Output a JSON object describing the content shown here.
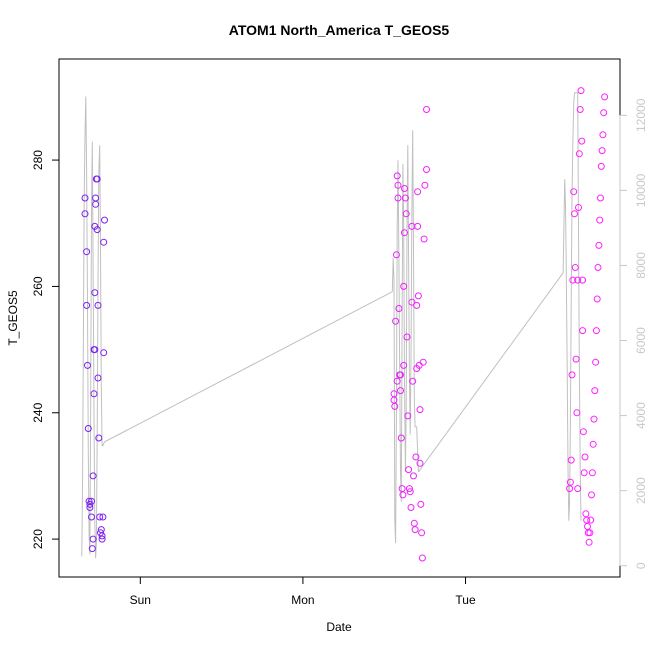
{
  "chart_data": {
    "type": "scatter",
    "title": "ATOM1 North_America T_GEOS5",
    "xlabel": "Date",
    "ylabel": "T_GEOS5",
    "x_ticks": [
      {
        "label": "Sun",
        "value": 1.0
      },
      {
        "label": "Mon",
        "value": 2.0
      },
      {
        "label": "Tue",
        "value": 3.0
      }
    ],
    "xlim": [
      0.5,
      3.95
    ],
    "ylim": [
      214,
      296
    ],
    "y_ticks": [
      220,
      240,
      260,
      280
    ],
    "y2lim": [
      -300,
      13500
    ],
    "y2_ticks": [
      0,
      2000,
      4000,
      6000,
      8000,
      10000,
      12000
    ],
    "grid": false,
    "series": [
      {
        "role": "temperature",
        "marker": "open-circle",
        "color_low": "#7a22f2",
        "color_high": "#ff22ff",
        "points": [
          [
            0.66,
            274
          ],
          [
            0.66,
            271.5
          ],
          [
            0.67,
            265.5
          ],
          [
            0.67,
            257
          ],
          [
            0.675,
            247.5
          ],
          [
            0.68,
            237.5
          ],
          [
            0.685,
            226
          ],
          [
            0.69,
            225.5
          ],
          [
            0.69,
            225
          ],
          [
            0.7,
            226
          ],
          [
            0.7,
            223.5
          ],
          [
            0.705,
            218.5
          ],
          [
            0.71,
            220
          ],
          [
            0.71,
            230
          ],
          [
            0.715,
            243
          ],
          [
            0.715,
            250
          ],
          [
            0.72,
            250
          ],
          [
            0.72,
            259
          ],
          [
            0.72,
            269.5
          ],
          [
            0.725,
            273
          ],
          [
            0.725,
            274
          ],
          [
            0.73,
            277
          ],
          [
            0.735,
            277
          ],
          [
            0.735,
            269
          ],
          [
            0.74,
            257
          ],
          [
            0.74,
            245.5
          ],
          [
            0.745,
            236
          ],
          [
            0.75,
            223.5
          ],
          [
            0.755,
            221
          ],
          [
            0.76,
            221.5
          ],
          [
            0.765,
            220.5
          ],
          [
            0.765,
            220
          ],
          [
            0.77,
            223.5
          ],
          [
            0.775,
            249.5
          ],
          [
            0.775,
            267
          ],
          [
            0.78,
            270.5
          ],
          [
            2.56,
            243
          ],
          [
            2.56,
            242
          ],
          [
            2.565,
            241
          ],
          [
            2.57,
            254.5
          ],
          [
            2.575,
            265
          ],
          [
            2.58,
            245
          ],
          [
            2.58,
            277.5
          ],
          [
            2.585,
            276
          ],
          [
            2.585,
            274
          ],
          [
            2.59,
            256.5
          ],
          [
            2.595,
            246
          ],
          [
            2.6,
            246
          ],
          [
            2.6,
            243.5
          ],
          [
            2.605,
            236
          ],
          [
            2.61,
            228
          ],
          [
            2.615,
            227
          ],
          [
            2.62,
            247.5
          ],
          [
            2.62,
            260
          ],
          [
            2.625,
            268.5
          ],
          [
            2.625,
            275.5
          ],
          [
            2.63,
            274
          ],
          [
            2.635,
            271.5
          ],
          [
            2.64,
            252
          ],
          [
            2.645,
            239.5
          ],
          [
            2.65,
            231
          ],
          [
            2.655,
            228
          ],
          [
            2.66,
            227.5
          ],
          [
            2.665,
            225
          ],
          [
            2.67,
            269.5
          ],
          [
            2.67,
            257.5
          ],
          [
            2.675,
            245
          ],
          [
            2.68,
            230
          ],
          [
            2.685,
            222.5
          ],
          [
            2.69,
            221.5
          ],
          [
            2.695,
            233
          ],
          [
            2.7,
            247
          ],
          [
            2.7,
            257
          ],
          [
            2.705,
            269.5
          ],
          [
            2.705,
            275
          ],
          [
            2.71,
            258.5
          ],
          [
            2.715,
            247.5
          ],
          [
            2.72,
            240.5
          ],
          [
            2.72,
            232
          ],
          [
            2.725,
            225.5
          ],
          [
            2.73,
            221
          ],
          [
            2.735,
            217
          ],
          [
            2.74,
            248
          ],
          [
            2.745,
            267.5
          ],
          [
            2.75,
            276
          ],
          [
            2.76,
            278.5
          ],
          [
            2.76,
            288
          ],
          [
            3.64,
            228
          ],
          [
            3.645,
            229
          ],
          [
            3.65,
            232.5
          ],
          [
            3.655,
            246
          ],
          [
            3.66,
            261
          ],
          [
            3.665,
            275
          ],
          [
            3.67,
            271.5
          ],
          [
            3.675,
            263
          ],
          [
            3.68,
            248.5
          ],
          [
            3.685,
            240
          ],
          [
            3.69,
            261
          ],
          [
            3.69,
            228
          ],
          [
            3.695,
            272.5
          ],
          [
            3.7,
            281
          ],
          [
            3.705,
            288
          ],
          [
            3.71,
            291
          ],
          [
            3.715,
            283
          ],
          [
            3.72,
            261
          ],
          [
            3.72,
            253
          ],
          [
            3.725,
            237
          ],
          [
            3.73,
            230.5
          ],
          [
            3.735,
            233
          ],
          [
            3.74,
            224
          ],
          [
            3.745,
            223
          ],
          [
            3.75,
            222
          ],
          [
            3.755,
            221
          ],
          [
            3.76,
            219.5
          ],
          [
            3.765,
            221
          ],
          [
            3.77,
            223
          ],
          [
            3.775,
            227
          ],
          [
            3.78,
            230.5
          ],
          [
            3.785,
            235
          ],
          [
            3.79,
            239
          ],
          [
            3.795,
            243.5
          ],
          [
            3.8,
            248
          ],
          [
            3.805,
            253
          ],
          [
            3.81,
            258
          ],
          [
            3.815,
            263
          ],
          [
            3.82,
            266.5
          ],
          [
            3.825,
            270.5
          ],
          [
            3.83,
            274
          ],
          [
            3.835,
            279
          ],
          [
            3.84,
            281.5
          ],
          [
            3.845,
            284
          ],
          [
            3.85,
            287.5
          ],
          [
            3.855,
            290
          ]
        ]
      },
      {
        "role": "altitude",
        "axis": "right",
        "color": "#c0c0c0",
        "points": [
          [
            0.64,
            250
          ],
          [
            0.645,
            2400
          ],
          [
            0.65,
            6200
          ],
          [
            0.655,
            9800
          ],
          [
            0.66,
            11500
          ],
          [
            0.665,
            12500
          ],
          [
            0.67,
            10500
          ],
          [
            0.675,
            7000
          ],
          [
            0.68,
            3000
          ],
          [
            0.685,
            800
          ],
          [
            0.69,
            300
          ],
          [
            0.695,
            4500
          ],
          [
            0.7,
            9500
          ],
          [
            0.705,
            11300
          ],
          [
            0.71,
            8000
          ],
          [
            0.715,
            4000
          ],
          [
            0.72,
            1200
          ],
          [
            0.725,
            200
          ],
          [
            0.73,
            600
          ],
          [
            0.735,
            3500
          ],
          [
            0.74,
            7500
          ],
          [
            0.745,
            10500
          ],
          [
            0.75,
            11200
          ],
          [
            0.755,
            8500
          ],
          [
            0.76,
            4800
          ],
          [
            0.765,
            3200
          ],
          [
            0.77,
            3200
          ],
          [
            0.78,
            3300
          ],
          [
            2.55,
            7300
          ],
          [
            2.555,
            8200
          ],
          [
            2.56,
            7600
          ],
          [
            2.565,
            1200
          ],
          [
            2.57,
            600
          ],
          [
            2.575,
            4000
          ],
          [
            2.58,
            9000
          ],
          [
            2.585,
            10800
          ],
          [
            2.59,
            8200
          ],
          [
            2.595,
            5200
          ],
          [
            2.6,
            2500
          ],
          [
            2.605,
            1700
          ],
          [
            2.61,
            6500
          ],
          [
            2.615,
            10700
          ],
          [
            2.62,
            9000
          ],
          [
            2.625,
            5000
          ],
          [
            2.63,
            2500
          ],
          [
            2.635,
            4200
          ],
          [
            2.64,
            9000
          ],
          [
            2.645,
            11200
          ],
          [
            2.65,
            8200
          ],
          [
            2.655,
            5100
          ],
          [
            2.66,
            3500
          ],
          [
            2.665,
            5500
          ],
          [
            2.67,
            9500
          ],
          [
            2.675,
            11600
          ],
          [
            2.68,
            8500
          ],
          [
            2.685,
            4500
          ],
          [
            2.69,
            3700
          ],
          [
            2.695,
            3700
          ],
          [
            2.7,
            3700
          ],
          [
            2.71,
            2500
          ],
          [
            3.6,
            7800
          ],
          [
            3.605,
            9000
          ],
          [
            3.61,
            10300
          ],
          [
            3.615,
            9600
          ],
          [
            3.62,
            7800
          ],
          [
            3.625,
            5200
          ],
          [
            3.63,
            2600
          ],
          [
            3.635,
            1200
          ],
          [
            3.64,
            1700
          ],
          [
            3.645,
            3800
          ],
          [
            3.65,
            7000
          ],
          [
            3.655,
            9800
          ],
          [
            3.66,
            11200
          ],
          [
            3.665,
            12300
          ],
          [
            3.67,
            12600
          ],
          [
            3.675,
            12600
          ],
          [
            3.68,
            12600
          ],
          [
            3.69,
            12600
          ],
          [
            3.695,
            9000
          ],
          [
            3.7,
            5500
          ],
          [
            3.705,
            2600
          ],
          [
            3.71,
            1200
          ]
        ]
      }
    ],
    "connections": [
      [
        [
          0.78,
          3300
        ],
        [
          2.55,
          7300
        ]
      ],
      [
        [
          2.71,
          2500
        ],
        [
          3.6,
          7800
        ]
      ]
    ]
  }
}
